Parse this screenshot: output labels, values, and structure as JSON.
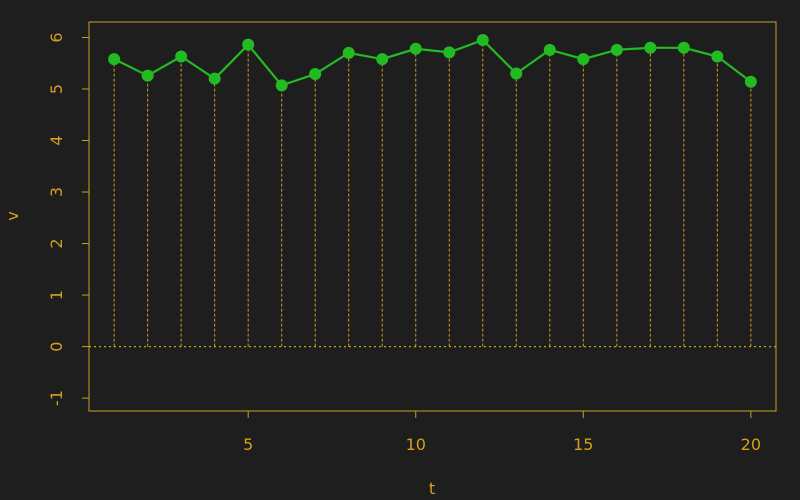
{
  "chart_data": {
    "type": "line",
    "xlabel": "t",
    "ylabel": "v",
    "xlim": [
      0.25,
      20.75
    ],
    "ylim": [
      -1.25,
      6.3
    ],
    "x_ticks": [
      5,
      10,
      15,
      20
    ],
    "y_ticks": [
      -1,
      0,
      1,
      2,
      3,
      4,
      5,
      6
    ],
    "grid": false,
    "reference_line": 0,
    "series": [
      {
        "x": [
          1,
          2,
          3,
          4,
          5,
          6,
          7,
          8,
          9,
          10,
          11,
          12,
          13,
          14,
          15,
          16,
          17,
          18,
          19,
          20
        ],
        "values": [
          5.58,
          5.26,
          5.63,
          5.2,
          5.86,
          5.07,
          5.29,
          5.7,
          5.58,
          5.78,
          5.71,
          5.95,
          5.3,
          5.76,
          5.58,
          5.76,
          5.8,
          5.8,
          5.63,
          5.14
        ]
      }
    ],
    "colors": {
      "background": "#1e1e1e",
      "axes": "#c8a020",
      "text": "#d4a017",
      "series": "#22bb22",
      "drop_lines": "#c8a020"
    }
  }
}
